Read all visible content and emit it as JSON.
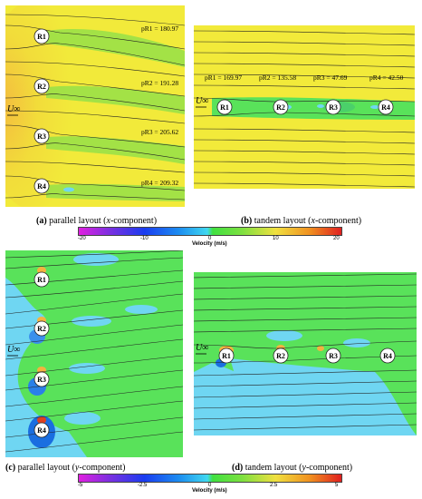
{
  "panels": {
    "a": {
      "caption_letter": "(a)",
      "caption_text": " parallel layout (",
      "caption_var": "x",
      "caption_tail": "-component)",
      "rotors": [
        "R1",
        "R2",
        "R3",
        "R4"
      ],
      "pressure": [
        "p",
        "R1",
        "= 180.97",
        "R2",
        "= 191.28",
        "R3",
        "= 205.62",
        "R4",
        "= 209.32"
      ],
      "p_labels": [
        "pR1 = 180.97",
        "pR2 = 191.28",
        "pR3 = 205.62",
        "pR4 = 209.32"
      ],
      "inflow": "U∞"
    },
    "b": {
      "caption_letter": "(b)",
      "caption_text": " tandem layout (",
      "caption_var": "x",
      "caption_tail": "-component)",
      "rotors": [
        "R1",
        "R2",
        "R3",
        "R4"
      ],
      "p_labels": [
        "pR1 = 169.97",
        "pR2 = 135.58",
        "pR3 = 47.69",
        "pR4 = 42.50"
      ],
      "inflow": "U∞"
    },
    "c": {
      "caption_letter": "(c)",
      "caption_text": " parallel layout (",
      "caption_var": "y",
      "caption_tail": "-component)",
      "rotors": [
        "R1",
        "R2",
        "R3",
        "R4"
      ],
      "inflow": "U∞"
    },
    "d": {
      "caption_letter": "(d)",
      "caption_text": " tandem layout (",
      "caption_var": "y",
      "caption_tail": "-component)",
      "rotors": [
        "R1",
        "R2",
        "R3",
        "R4"
      ],
      "inflow": "U∞"
    }
  },
  "colorbar_x": {
    "title": "Velocity (m/s)",
    "ticks": [
      "-20",
      "-10",
      "0",
      "10",
      "20"
    ]
  },
  "colorbar_y": {
    "title": "Velocity (m/s)",
    "ticks": [
      "-5",
      "-2.5",
      "0",
      "2.5",
      "5"
    ]
  },
  "colors": {
    "yellow": "#f2ea3a",
    "green": "#59e25a",
    "cyan": "#6fd6f2",
    "orange": "#f4b240",
    "blue": "#1565e0"
  }
}
